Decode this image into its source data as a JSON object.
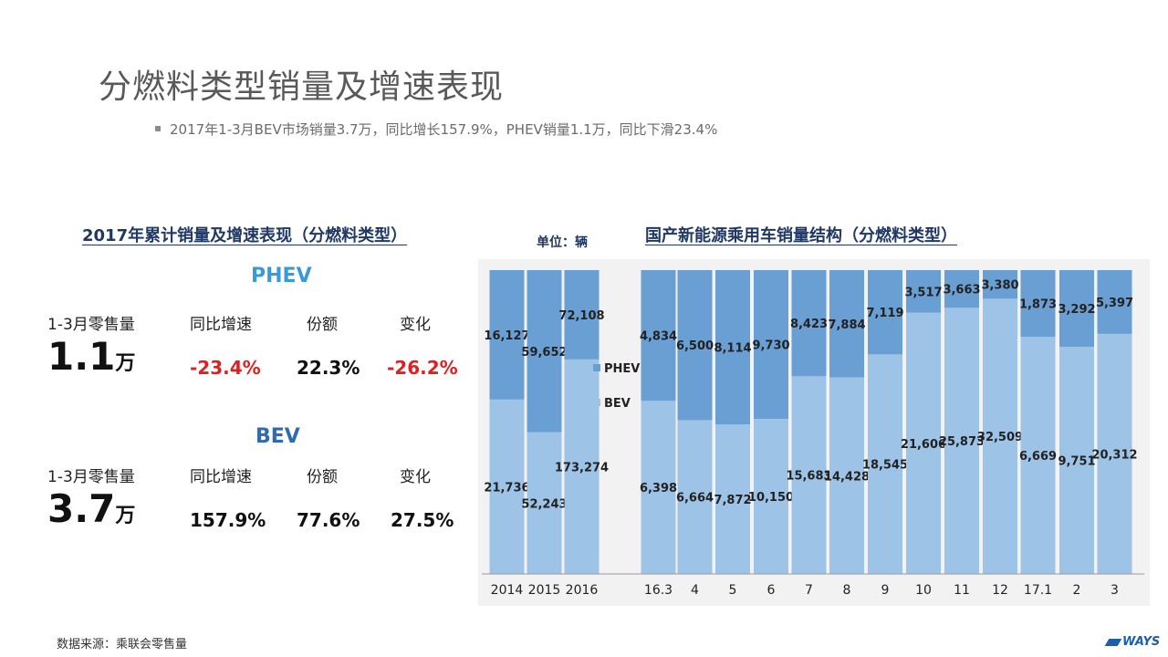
{
  "title": "分燃料类型销量及增速表现",
  "bullet": "2017年1-3月BEV市场销量3.7万，同比增长157.9%，PHEV销量1.1万，同比下滑23.4%",
  "left_panel": {
    "title": "2017年累计销量及增速表现（分燃料类型）",
    "phev": {
      "label": "PHEV",
      "label_color": "#3a9ad9",
      "col_headers": [
        "1-3月零售量",
        "同比增速",
        "份额",
        "变化"
      ],
      "volume_number": "1.1",
      "volume_unit": "万",
      "yoy": "-23.4%",
      "share": "22.3%",
      "change": "-26.2%",
      "negative_color": "#e02020"
    },
    "bev": {
      "label": "BEV",
      "label_color": "#2e6bb0",
      "col_headers": [
        "1-3月零售量",
        "同比增速",
        "份额",
        "变化"
      ],
      "volume_number": "3.7",
      "volume_unit": "万",
      "yoy": "157.9%",
      "share": "77.6%",
      "change": "27.5%"
    }
  },
  "unit_note": "单位：辆",
  "right_title": "国产新能源乘用车销量结构（分燃料类型）",
  "source": "数据来源：乘联会零售量",
  "logo": "WAYS",
  "chart_data": {
    "type": "bar",
    "stacked": "percent",
    "categories": [
      "2014",
      "2015",
      "2016",
      "16.3",
      "4",
      "5",
      "6",
      "7",
      "8",
      "9",
      "10",
      "11",
      "12",
      "17.1",
      "2",
      "3"
    ],
    "series": [
      {
        "name": "BEV",
        "color": "#9dc3e6",
        "values": [
          21736,
          52243,
          173274,
          6398,
          6664,
          7872,
          10150,
          15683,
          14428,
          18545,
          21606,
          25873,
          32509,
          6669,
          9751,
          20312
        ]
      },
      {
        "name": "PHEV",
        "color": "#6a9fd4",
        "values": [
          16127,
          59652,
          72108,
          4834,
          6500,
          8114,
          9730,
          8423,
          7884,
          7119,
          3517,
          3663,
          3380,
          1873,
          3292,
          5397
        ]
      }
    ],
    "legend_position": "middle-left",
    "grid": false
  }
}
